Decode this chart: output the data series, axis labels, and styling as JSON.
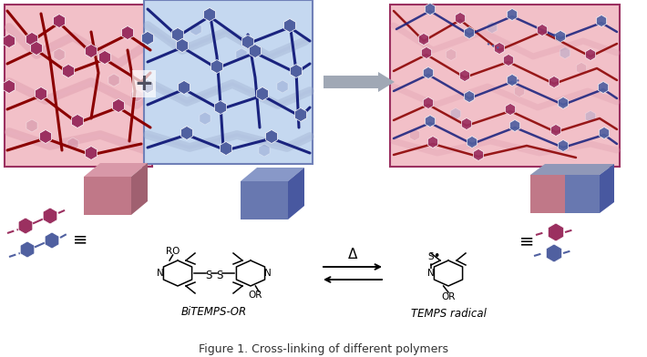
{
  "fig_width": 7.1,
  "fig_height": 3.92,
  "dpi": 100,
  "bg_color": "#ffffff",
  "dark_red": "#8B0000",
  "light_red_bg": "#F2C0C8",
  "dark_blue": "#1A237E",
  "light_blue_bg": "#C5D8F0",
  "hex_red": "#9B3060",
  "hex_red_light": "#C888A0",
  "hex_blue": "#5060A0",
  "hex_blue_light": "#8898C8",
  "cube_pink_front": "#C07888",
  "cube_pink_top": "#D898A8",
  "cube_pink_side": "#A06070",
  "cube_blue_front": "#6878B0",
  "cube_blue_top": "#8898C8",
  "cube_blue_side": "#4858A0",
  "arrow_color": "#909090",
  "plus_color": "#505060",
  "label_bitemps": "BiTEMPS-OR",
  "label_temps": "TEMPS radical",
  "delta_symbol": "Δ",
  "title": "Figure 1. Cross-linking of different polymers"
}
